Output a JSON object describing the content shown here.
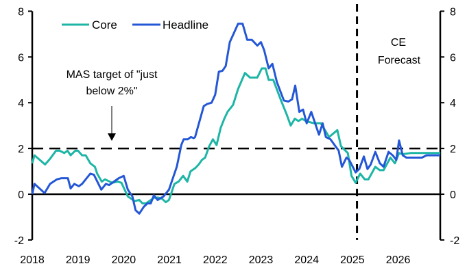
{
  "chart_data": {
    "type": "line",
    "title": "",
    "xlabel": "",
    "ylabel": "",
    "xlim": [
      2018,
      2026.92
    ],
    "ylim": [
      -2,
      8
    ],
    "x_ticks": [
      "2018",
      "2019",
      "2020",
      "2021",
      "2022",
      "2023",
      "2024",
      "2025",
      "2026"
    ],
    "y_ticks_left": [
      "-2",
      "0",
      "2",
      "4",
      "6",
      "8"
    ],
    "y_ticks_right": [
      "-2",
      "0",
      "2",
      "4",
      "6",
      "8"
    ],
    "legend": {
      "placement": "top-left",
      "entries": [
        "Core",
        "Headline"
      ]
    },
    "colors": {
      "Core": "#1db5a5",
      "Headline": "#2457d6"
    },
    "reference_lines": {
      "target": 2,
      "forecast_start": 2025.1
    },
    "annotations": {
      "target_line1": "MAS target of \"just",
      "target_line2": "below 2%\"",
      "forecast_line1": "CE",
      "forecast_line2": "Forecast"
    },
    "series": [
      {
        "name": "Core",
        "points": [
          [
            2018.0,
            1.35
          ],
          [
            2018.05,
            1.7
          ],
          [
            2018.28,
            1.3
          ],
          [
            2018.39,
            1.55
          ],
          [
            2018.52,
            1.9
          ],
          [
            2018.6,
            1.9
          ],
          [
            2018.7,
            1.8
          ],
          [
            2018.77,
            1.9
          ],
          [
            2018.84,
            1.7
          ],
          [
            2018.94,
            1.9
          ],
          [
            2019.0,
            1.9
          ],
          [
            2019.09,
            1.7
          ],
          [
            2019.17,
            1.7
          ],
          [
            2019.27,
            1.35
          ],
          [
            2019.37,
            1.2
          ],
          [
            2019.42,
            0.9
          ],
          [
            2019.52,
            0.55
          ],
          [
            2019.59,
            0.65
          ],
          [
            2019.75,
            0.5
          ],
          [
            2019.87,
            0.55
          ],
          [
            2019.95,
            0.5
          ],
          [
            2020.09,
            -0.1
          ],
          [
            2020.24,
            -0.3
          ],
          [
            2020.34,
            -0.25
          ],
          [
            2020.41,
            -0.4
          ],
          [
            2020.49,
            -0.4
          ],
          [
            2020.56,
            -0.3
          ],
          [
            2020.67,
            -0.15
          ],
          [
            2020.76,
            -0.15
          ],
          [
            2020.84,
            -0.2
          ],
          [
            2020.92,
            -0.35
          ],
          [
            2020.99,
            -0.25
          ],
          [
            2021.11,
            0.45
          ],
          [
            2021.2,
            0.55
          ],
          [
            2021.3,
            0.8
          ],
          [
            2021.39,
            0.55
          ],
          [
            2021.46,
            1.0
          ],
          [
            2021.57,
            1.15
          ],
          [
            2021.64,
            1.3
          ],
          [
            2021.71,
            1.5
          ],
          [
            2021.78,
            1.6
          ],
          [
            2021.87,
            2.1
          ],
          [
            2021.95,
            2.4
          ],
          [
            2022.03,
            2.15
          ],
          [
            2022.12,
            2.9
          ],
          [
            2022.2,
            3.3
          ],
          [
            2022.27,
            3.6
          ],
          [
            2022.39,
            3.9
          ],
          [
            2022.5,
            4.6
          ],
          [
            2022.65,
            5.3
          ],
          [
            2022.76,
            5.1
          ],
          [
            2022.92,
            5.1
          ],
          [
            2023.02,
            5.5
          ],
          [
            2023.1,
            5.5
          ],
          [
            2023.17,
            5.0
          ],
          [
            2023.27,
            5.0
          ],
          [
            2023.44,
            4.1
          ],
          [
            2023.56,
            3.5
          ],
          [
            2023.65,
            3.0
          ],
          [
            2023.74,
            3.3
          ],
          [
            2023.82,
            3.2
          ],
          [
            2023.9,
            3.3
          ],
          [
            2023.98,
            3.2
          ],
          [
            2024.16,
            3.1
          ],
          [
            2024.31,
            3.1
          ],
          [
            2024.49,
            2.5
          ],
          [
            2024.67,
            2.8
          ],
          [
            2024.75,
            2.1
          ],
          [
            2024.9,
            1.8
          ],
          [
            2024.98,
            0.8
          ],
          [
            2025.07,
            0.5
          ],
          [
            2025.17,
            0.9
          ],
          [
            2025.27,
            0.65
          ],
          [
            2025.35,
            0.65
          ],
          [
            2025.5,
            1.2
          ],
          [
            2025.6,
            1.05
          ],
          [
            2025.68,
            1.05
          ],
          [
            2025.83,
            1.6
          ],
          [
            2025.93,
            1.35
          ],
          [
            2026.02,
            1.8
          ],
          [
            2026.1,
            1.75
          ],
          [
            2026.27,
            1.8
          ],
          [
            2026.92,
            1.8
          ]
        ]
      },
      {
        "name": "Headline",
        "points": [
          [
            2018.0,
            0.0
          ],
          [
            2018.05,
            0.45
          ],
          [
            2018.27,
            0.05
          ],
          [
            2018.39,
            0.45
          ],
          [
            2018.54,
            0.65
          ],
          [
            2018.64,
            0.7
          ],
          [
            2018.78,
            0.7
          ],
          [
            2018.84,
            0.25
          ],
          [
            2018.92,
            0.45
          ],
          [
            2019.02,
            0.35
          ],
          [
            2019.09,
            0.45
          ],
          [
            2019.27,
            0.9
          ],
          [
            2019.35,
            0.85
          ],
          [
            2019.51,
            0.2
          ],
          [
            2019.61,
            0.45
          ],
          [
            2019.68,
            0.4
          ],
          [
            2019.89,
            0.7
          ],
          [
            2020.0,
            0.8
          ],
          [
            2020.09,
            0.2
          ],
          [
            2020.19,
            -0.1
          ],
          [
            2020.26,
            -0.7
          ],
          [
            2020.34,
            -0.85
          ],
          [
            2020.44,
            -0.55
          ],
          [
            2020.52,
            -0.4
          ],
          [
            2020.59,
            -0.4
          ],
          [
            2020.66,
            -0.05
          ],
          [
            2020.74,
            -0.25
          ],
          [
            2020.87,
            -0.1
          ],
          [
            2020.99,
            0.2
          ],
          [
            2021.16,
            1.2
          ],
          [
            2021.26,
            2.15
          ],
          [
            2021.31,
            2.4
          ],
          [
            2021.4,
            2.4
          ],
          [
            2021.47,
            2.5
          ],
          [
            2021.53,
            2.45
          ],
          [
            2021.56,
            2.5
          ],
          [
            2021.75,
            3.85
          ],
          [
            2021.83,
            3.95
          ],
          [
            2021.92,
            4.0
          ],
          [
            2022.0,
            4.35
          ],
          [
            2022.08,
            5.35
          ],
          [
            2022.16,
            5.4
          ],
          [
            2022.23,
            5.6
          ],
          [
            2022.32,
            6.65
          ],
          [
            2022.5,
            7.45
          ],
          [
            2022.6,
            7.45
          ],
          [
            2022.7,
            6.75
          ],
          [
            2022.8,
            6.75
          ],
          [
            2022.92,
            6.5
          ],
          [
            2023.0,
            6.65
          ],
          [
            2023.07,
            6.3
          ],
          [
            2023.17,
            5.5
          ],
          [
            2023.25,
            5.7
          ],
          [
            2023.35,
            4.9
          ],
          [
            2023.5,
            4.1
          ],
          [
            2023.6,
            4.05
          ],
          [
            2023.68,
            4.15
          ],
          [
            2023.75,
            4.75
          ],
          [
            2023.84,
            3.6
          ],
          [
            2023.92,
            3.7
          ],
          [
            2024.0,
            3.1
          ],
          [
            2024.1,
            3.6
          ],
          [
            2024.27,
            2.6
          ],
          [
            2024.35,
            3.1
          ],
          [
            2024.42,
            2.5
          ],
          [
            2024.52,
            2.4
          ],
          [
            2024.7,
            1.9
          ],
          [
            2024.77,
            1.2
          ],
          [
            2024.87,
            1.6
          ],
          [
            2024.93,
            1.5
          ],
          [
            2025.07,
            0.95
          ],
          [
            2025.15,
            1.1
          ],
          [
            2025.25,
            1.65
          ],
          [
            2025.33,
            1.1
          ],
          [
            2025.4,
            1.3
          ],
          [
            2025.5,
            1.85
          ],
          [
            2025.6,
            1.35
          ],
          [
            2025.68,
            1.2
          ],
          [
            2025.79,
            1.85
          ],
          [
            2025.88,
            1.7
          ],
          [
            2025.96,
            1.5
          ],
          [
            2026.02,
            2.35
          ],
          [
            2026.1,
            1.7
          ],
          [
            2026.18,
            1.6
          ],
          [
            2026.52,
            1.6
          ],
          [
            2026.62,
            1.7
          ],
          [
            2026.92,
            1.7
          ]
        ]
      }
    ]
  }
}
